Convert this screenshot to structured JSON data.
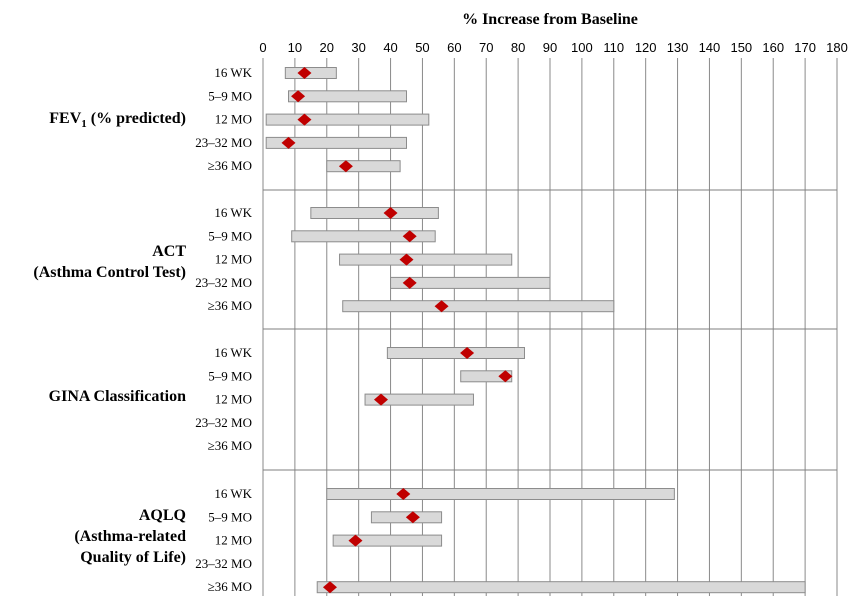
{
  "chart_data": {
    "type": "range-bar",
    "xlabel": "% Increase from Baseline",
    "xlim": [
      0,
      180
    ],
    "xticks": [
      "0",
      "10",
      "20",
      "30",
      "40",
      "50",
      "60",
      "70",
      "80",
      "90",
      "100",
      "110",
      "120",
      "130",
      "140",
      "150",
      "160",
      "170",
      "180"
    ],
    "grid": "vertical",
    "categories": [
      "16 WK",
      "5–9 MO",
      "12 MO",
      "23–32 MO",
      "≥36 MO"
    ],
    "groups": [
      {
        "label_lines": [
          "FEV1 (% predicted)"
        ],
        "label_main": "FEV",
        "label_sub": "1",
        "label_rest": " (% predicted)",
        "rows": [
          {
            "category": "16 WK",
            "low": 7,
            "high": 23,
            "point": 13
          },
          {
            "category": "5–9 MO",
            "low": 8,
            "high": 45,
            "point": 11
          },
          {
            "category": "12 MO",
            "low": 1,
            "high": 52,
            "point": 13
          },
          {
            "category": "23–32 MO",
            "low": 1,
            "high": 45,
            "point": 8
          },
          {
            "category": "≥36 MO",
            "low": 20,
            "high": 43,
            "point": 26
          }
        ]
      },
      {
        "label_lines": [
          "ACT",
          "(Asthma Control Test)"
        ],
        "rows": [
          {
            "category": "16 WK",
            "low": 15,
            "high": 55,
            "point": 40
          },
          {
            "category": "5–9 MO",
            "low": 9,
            "high": 54,
            "point": 46
          },
          {
            "category": "12 MO",
            "low": 24,
            "high": 78,
            "point": 45
          },
          {
            "category": "23–32 MO",
            "low": 40,
            "high": 90,
            "point": 46
          },
          {
            "category": "≥36 MO",
            "low": 25,
            "high": 110,
            "point": 56
          }
        ]
      },
      {
        "label_lines": [
          "GINA Classification"
        ],
        "rows": [
          {
            "category": "16 WK",
            "low": 39,
            "high": 82,
            "point": 64
          },
          {
            "category": "5–9 MO",
            "low": 62,
            "high": 78,
            "point": 76
          },
          {
            "category": "12 MO",
            "low": 32,
            "high": 66,
            "point": 37
          },
          {
            "category": "23–32 MO",
            "low": null,
            "high": null,
            "point": null
          },
          {
            "category": "≥36 MO",
            "low": null,
            "high": null,
            "point": null
          }
        ]
      },
      {
        "label_lines": [
          "AQLQ",
          "(Asthma-related",
          "Quality of Life)"
        ],
        "rows": [
          {
            "category": "16 WK",
            "low": 20,
            "high": 129,
            "point": 44
          },
          {
            "category": "5–9 MO",
            "low": 34,
            "high": 56,
            "point": 47
          },
          {
            "category": "12 MO",
            "low": 22,
            "high": 56,
            "point": 29
          },
          {
            "category": "23–32 MO",
            "low": null,
            "high": null,
            "point": null
          },
          {
            "category": "≥36 MO",
            "low": 17,
            "high": 170,
            "point": 21
          }
        ]
      }
    ],
    "colors": {
      "bar_fill": "#d9d9d9",
      "bar_stroke": "#8c8c8c",
      "marker": "#c00000",
      "grid": "#8a8a8a",
      "separator": "#7f7f7f"
    }
  }
}
